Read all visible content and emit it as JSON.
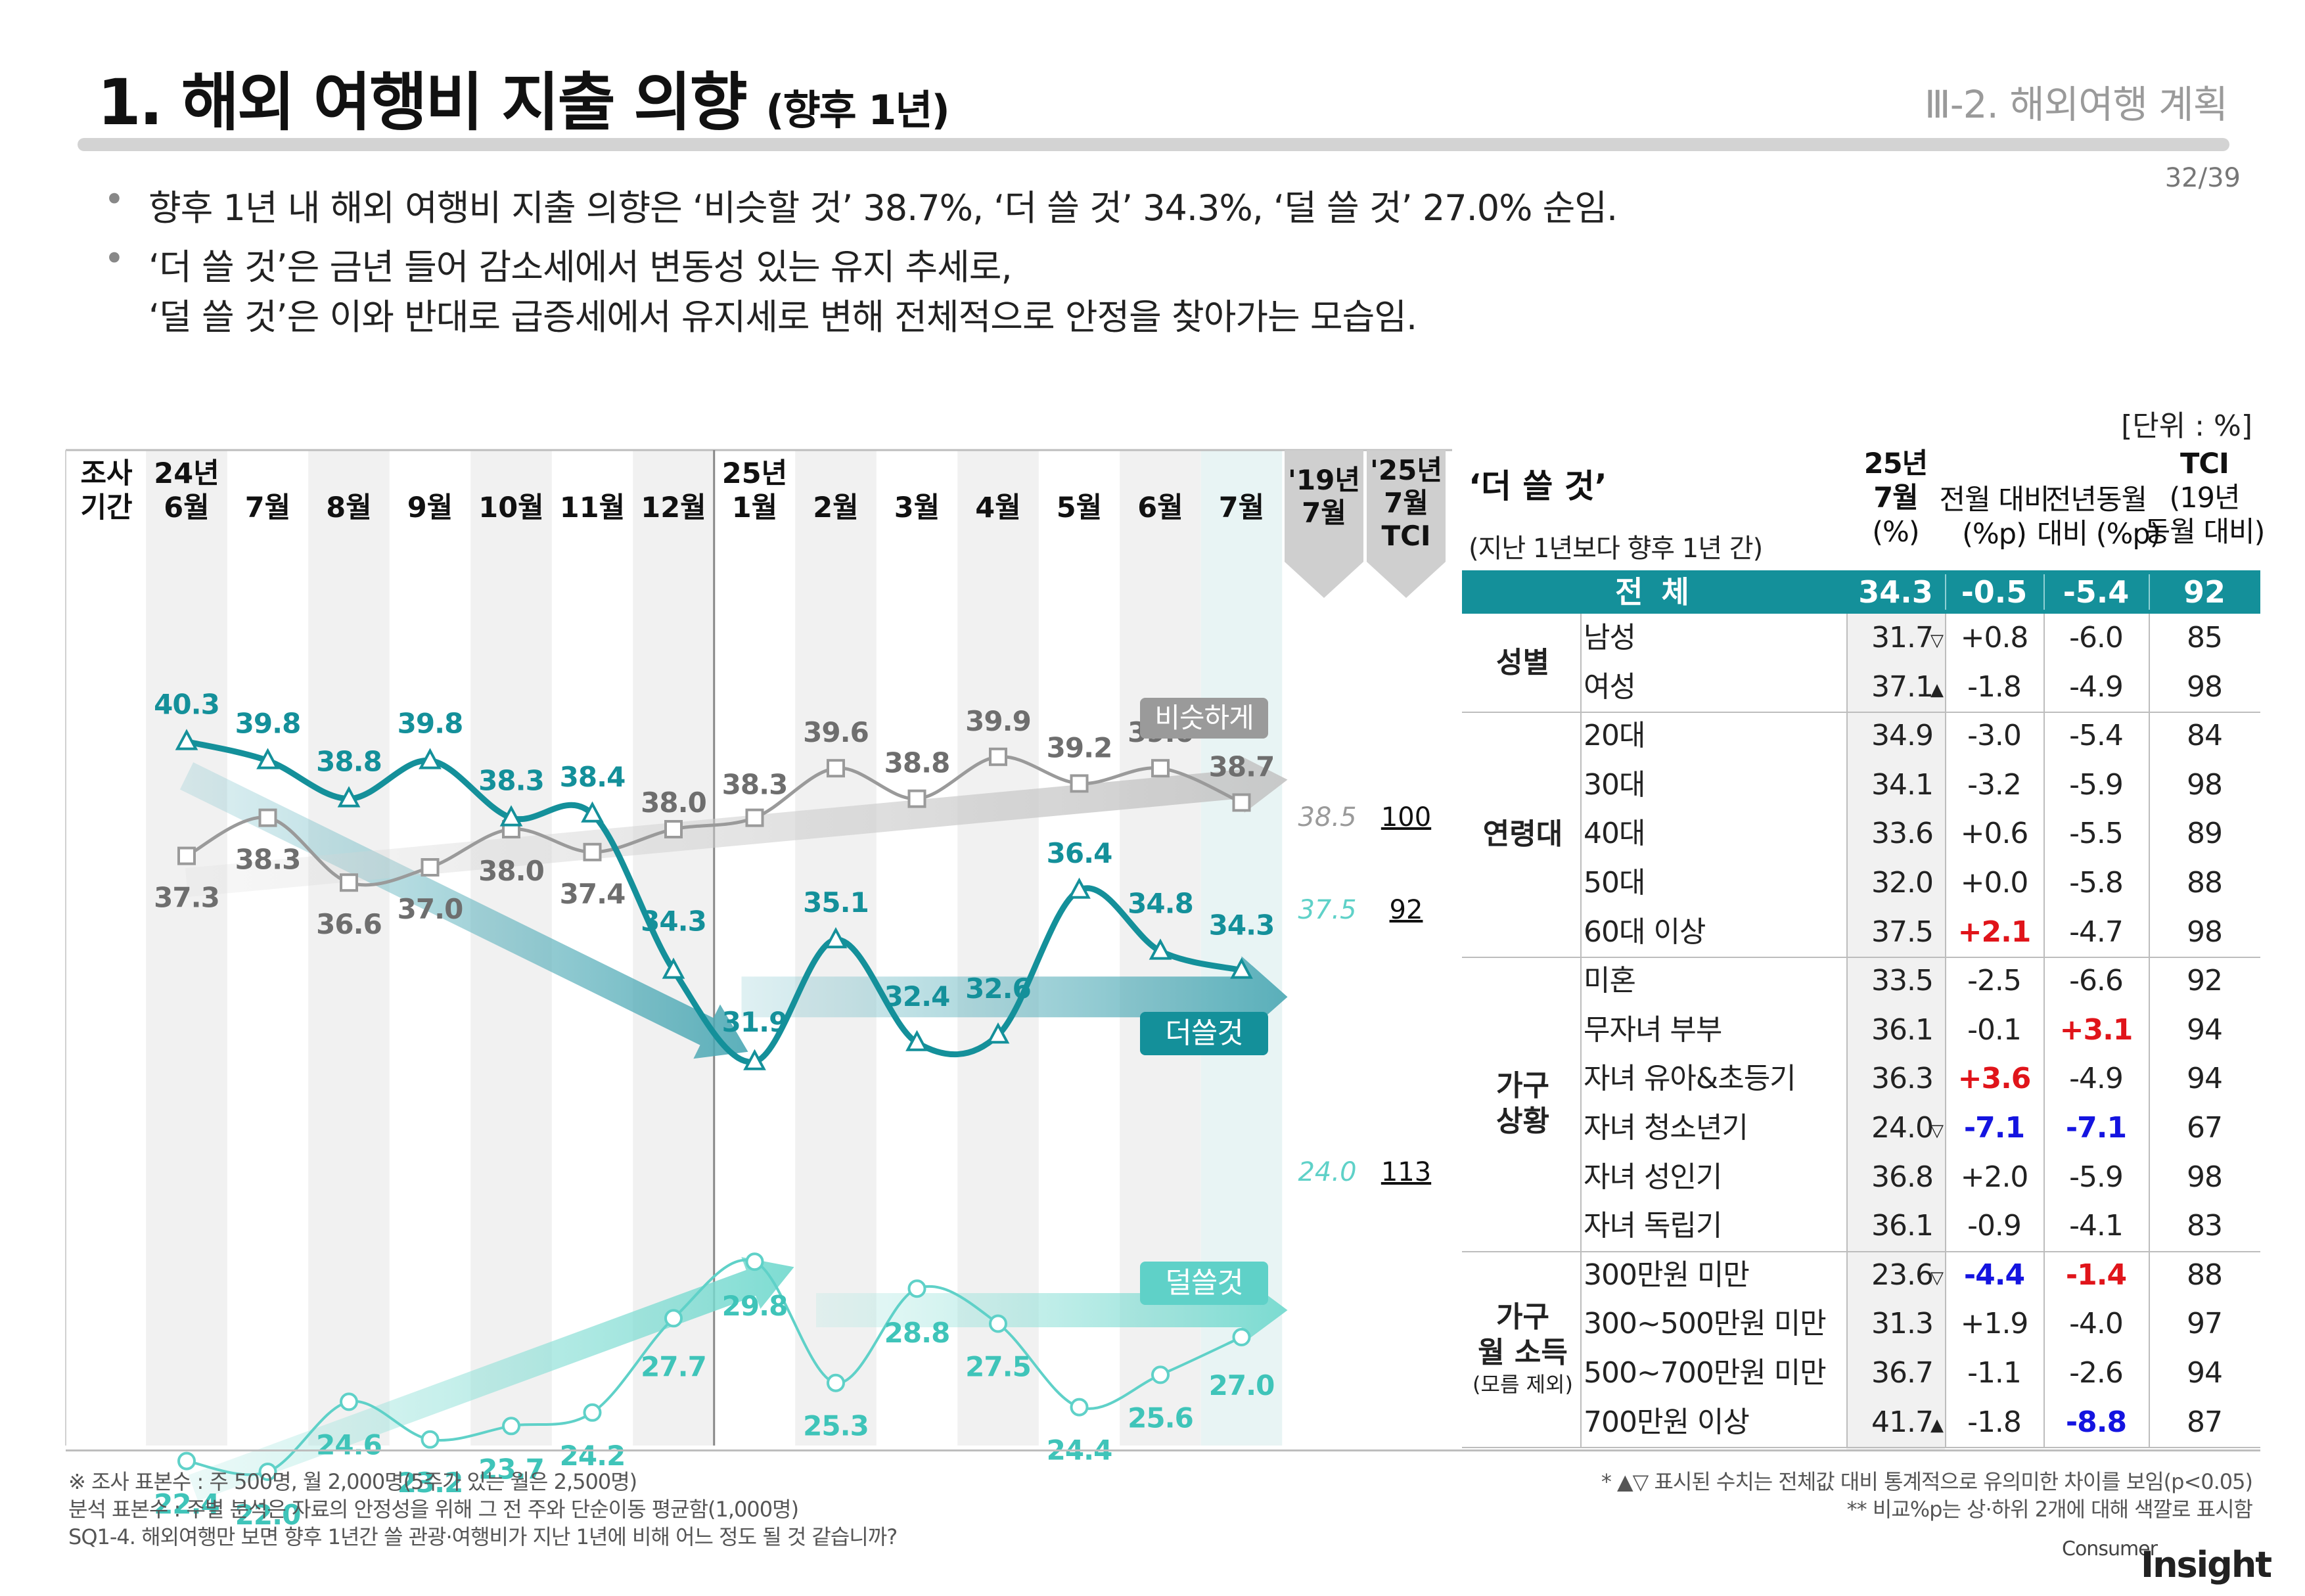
{
  "header": {
    "title": "1. 해외 여행비 지출 의향",
    "title_suffix": "(향후 1년)",
    "section": "Ⅲ-2. 해외여행 계획",
    "page": "32/39"
  },
  "bullets": [
    {
      "lines": [
        "향후 1년 내 해외 여행비 지출 의향은 ‘비슷할 것’ 38.7%, ‘더 쓸 것’ 34.3%, ‘덜 쓸 것’ 27.0% 순임."
      ]
    },
    {
      "lines": [
        "‘더 쓸 것’은 금년 들어 감소세에서 변동성 있는 유지 추세로,",
        "‘덜 쓸 것’은 이와 반대로 급증세에서 유지세로 변해 전체적으로 안정을 찾아가는 모습임."
      ]
    }
  ],
  "unit_label": "[단위 : %]",
  "chart_data": {
    "type": "line",
    "period_label": "조사\n기간",
    "categories": [
      "24년\n6월",
      "7월",
      "8월",
      "9월",
      "10월",
      "11월",
      "12월",
      "25년\n1월",
      "2월",
      "3월",
      "4월",
      "5월",
      "6월",
      "7월"
    ],
    "series": [
      {
        "name": "비슷하게",
        "color": "#9a9a9a",
        "values": [
          37.3,
          38.3,
          36.6,
          37.0,
          38.0,
          37.4,
          38.0,
          38.3,
          39.6,
          38.8,
          39.9,
          39.2,
          39.6,
          38.7
        ]
      },
      {
        "name": "더쓸것",
        "color": "#14909a",
        "values": [
          40.3,
          39.8,
          38.8,
          39.8,
          38.3,
          38.4,
          34.3,
          31.9,
          35.1,
          32.4,
          32.6,
          36.4,
          34.8,
          34.3
        ]
      },
      {
        "name": "덜쓸것",
        "color": "#5fd1c8",
        "values": [
          22.4,
          22.0,
          24.6,
          23.2,
          23.7,
          24.2,
          27.7,
          29.8,
          25.3,
          28.8,
          27.5,
          24.4,
          25.6,
          27.0
        ]
      }
    ],
    "comparison_headers": [
      "'19년\n7월",
      "'25년\n7월\nTCI"
    ],
    "comparison": [
      {
        "series": "비슷하게",
        "y2019": "38.5",
        "tci": "100"
      },
      {
        "series": "더쓸것",
        "y2019": "37.5",
        "tci": "92"
      },
      {
        "series": "덜쓸것",
        "y2019": "24.0",
        "tci": "113"
      }
    ]
  },
  "table": {
    "title": "‘더 쓸 것’",
    "subtitle": "(지난 1년보다 향후 1년 간)",
    "col_headers": [
      "25년\n7월\n(%)",
      "전월 대비\n(%p)",
      "전년동월\n대비 (%p)",
      "TCI\n(19년\n동월 대비)"
    ],
    "total": {
      "label": "전 체",
      "values": [
        "34.3",
        "-0.5",
        "-5.4",
        "92"
      ]
    },
    "groups": [
      {
        "name": "성별",
        "rows": [
          {
            "label": "남성",
            "pct": "31.7",
            "mark": "▽",
            "mom": "+0.8",
            "yoy": "-6.0",
            "tci": "85"
          },
          {
            "label": "여성",
            "pct": "37.1",
            "mark": "▲",
            "mom": "-1.8",
            "yoy": "-4.9",
            "tci": "98"
          }
        ]
      },
      {
        "name": "연령대",
        "rows": [
          {
            "label": "20대",
            "pct": "34.9",
            "mark": "",
            "mom": "-3.0",
            "yoy": "-5.4",
            "tci": "84"
          },
          {
            "label": "30대",
            "pct": "34.1",
            "mark": "",
            "mom": "-3.2",
            "yoy": "-5.9",
            "tci": "98"
          },
          {
            "label": "40대",
            "pct": "33.6",
            "mark": "",
            "mom": "+0.6",
            "yoy": "-5.5",
            "tci": "89"
          },
          {
            "label": "50대",
            "pct": "32.0",
            "mark": "",
            "mom": "+0.0",
            "yoy": "-5.8",
            "tci": "88"
          },
          {
            "label": "60대 이상",
            "pct": "37.5",
            "mark": "",
            "mom": "+2.1",
            "yoy": "-4.7",
            "tci": "98",
            "mom_color": "red"
          }
        ]
      },
      {
        "name": "가구\n상황",
        "rows": [
          {
            "label": "미혼",
            "pct": "33.5",
            "mark": "",
            "mom": "-2.5",
            "yoy": "-6.6",
            "tci": "92"
          },
          {
            "label": "무자녀 부부",
            "pct": "36.1",
            "mark": "",
            "mom": "-0.1",
            "yoy": "+3.1",
            "tci": "94",
            "yoy_color": "red"
          },
          {
            "label": "자녀 유아&초등기",
            "pct": "36.3",
            "mark": "",
            "mom": "+3.6",
            "yoy": "-4.9",
            "tci": "94",
            "mom_color": "red"
          },
          {
            "label": "자녀 청소년기",
            "pct": "24.0",
            "mark": "▽",
            "mom": "-7.1",
            "yoy": "-7.1",
            "tci": "67",
            "mom_color": "blue",
            "yoy_color": "blue"
          },
          {
            "label": "자녀 성인기",
            "pct": "36.8",
            "mark": "",
            "mom": "+2.0",
            "yoy": "-5.9",
            "tci": "98"
          },
          {
            "label": "자녀 독립기",
            "pct": "36.1",
            "mark": "",
            "mom": "-0.9",
            "yoy": "-4.1",
            "tci": "83"
          }
        ]
      },
      {
        "name": "가구\n월 소득",
        "note": "(모름 제외)",
        "rows": [
          {
            "label": "300만원 미만",
            "pct": "23.6",
            "mark": "▽",
            "mom": "-4.4",
            "yoy": "-1.4",
            "tci": "88",
            "mom_color": "blue",
            "yoy_color": "red"
          },
          {
            "label": "300~500만원 미만",
            "pct": "31.3",
            "mark": "",
            "mom": "+1.9",
            "yoy": "-4.0",
            "tci": "97"
          },
          {
            "label": "500~700만원 미만",
            "pct": "36.7",
            "mark": "",
            "mom": "-1.1",
            "yoy": "-2.6",
            "tci": "94"
          },
          {
            "label": "700만원 이상",
            "pct": "41.7",
            "mark": "▲",
            "mom": "-1.8",
            "yoy": "-8.8",
            "tci": "87",
            "yoy_color": "blue"
          }
        ]
      }
    ]
  },
  "footnotes": {
    "left": [
      "※ 조사 표본수 : 주 500명, 월 2,000명(5주가 있는 월은 2,500명)",
      "  분석 표본수 : 주별 분석은 자료의 안정성을 위해 그 전 주와 단순이동 평균함(1,000명)",
      "SQ1-4. 해외여행만 보면 향후 1년간 쓸 관광·여행비가 지난 1년에 비해 어느 정도 될 것 같습니까?"
    ],
    "right": [
      "* ▲▽ 표시된 수치는 전체값 대비 통계적으로 유의미한 차이를 보임(p<0.05)",
      "** 비교%p는 상·하위 2개에 대해 색깔로 표시함"
    ]
  },
  "brand": {
    "top": "Consumer",
    "bottom": "Insight"
  }
}
